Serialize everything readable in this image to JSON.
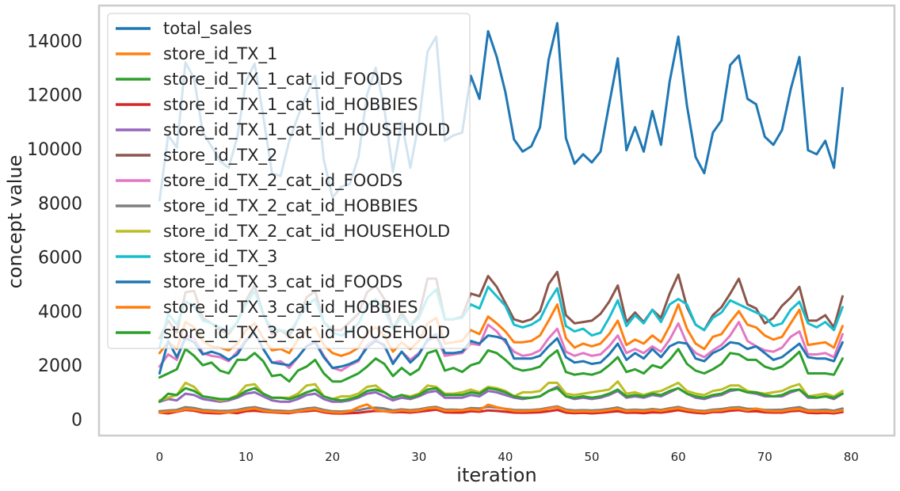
{
  "chart_data": {
    "type": "line",
    "title": "",
    "xlabel": "iteration",
    "ylabel": "concept value",
    "xlim": [
      -7,
      85
    ],
    "ylim": [
      -600,
      15300
    ],
    "xticks": [
      0,
      10,
      20,
      30,
      40,
      50,
      60,
      70,
      80
    ],
    "yticks": [
      0,
      2000,
      4000,
      6000,
      8000,
      10000,
      12000,
      14000
    ],
    "grid": false,
    "legend_position": "top-left",
    "x": [
      0,
      1,
      2,
      3,
      4,
      5,
      6,
      7,
      8,
      9,
      10,
      11,
      12,
      13,
      14,
      15,
      16,
      17,
      18,
      19,
      20,
      21,
      22,
      23,
      24,
      25,
      26,
      27,
      28,
      29,
      30,
      31,
      32,
      33,
      34,
      35,
      36,
      37,
      38,
      39,
      40,
      41,
      42,
      43,
      44,
      45,
      46,
      47,
      48,
      49,
      50,
      51,
      52,
      53,
      54,
      55,
      56,
      57,
      58,
      59,
      60,
      61,
      62,
      63,
      64,
      65,
      66,
      67,
      68,
      69,
      70,
      71,
      72,
      73,
      74,
      75,
      76,
      77,
      78,
      79
    ],
    "series": [
      {
        "name": "total_sales",
        "color": "#1f77b4",
        "values": [
          8100,
          10500,
          10050,
          13200,
          12600,
          10600,
          10100,
          9550,
          9300,
          10450,
          12500,
          13150,
          11200,
          9100,
          9000,
          10300,
          11200,
          12000,
          12700,
          9600,
          8200,
          8600,
          8700,
          9700,
          12000,
          13000,
          11500,
          9150,
          11000,
          9300,
          11000,
          13600,
          14150,
          10300,
          10500,
          10600,
          12700,
          11850,
          14350,
          13400,
          12100,
          10350,
          9900,
          10100,
          10800,
          13300,
          14650,
          10400,
          9450,
          9800,
          9500,
          9900,
          11650,
          13350,
          9950,
          10800,
          9900,
          11400,
          10150,
          12500,
          14150,
          11600,
          9700,
          9100,
          10600,
          11050,
          13100,
          13450,
          11850,
          11650,
          10450,
          10150,
          10700,
          12200,
          13400,
          9950,
          9800,
          10300,
          9300,
          12250
        ]
      },
      {
        "name": "store_id_TX_1",
        "color": "#ff7f0e",
        "values": [
          2450,
          2850,
          2600,
          3600,
          3400,
          2900,
          2700,
          2650,
          2550,
          2800,
          3300,
          3550,
          3000,
          2550,
          2600,
          2450,
          2950,
          3250,
          3400,
          2750,
          2450,
          2350,
          2450,
          2650,
          3200,
          3400,
          3100,
          2500,
          2850,
          2600,
          2900,
          3550,
          3750,
          2800,
          2850,
          2900,
          3300,
          3150,
          3800,
          3550,
          3250,
          2850,
          2850,
          2900,
          3100,
          3650,
          4250,
          3000,
          2650,
          2800,
          2700,
          2800,
          3150,
          3650,
          2750,
          2950,
          2800,
          3100,
          2850,
          3450,
          4250,
          3350,
          2800,
          2600,
          3050,
          3150,
          3600,
          4000,
          3500,
          3400,
          3100,
          2950,
          3050,
          3550,
          4050,
          2750,
          2800,
          2850,
          2650,
          3450
        ]
      },
      {
        "name": "store_id_TX_1_cat_id_FOODS",
        "color": "#2ca02c",
        "values": [
          1550,
          1700,
          1850,
          2600,
          2350,
          2000,
          2100,
          1800,
          1700,
          2200,
          2200,
          2450,
          2150,
          1600,
          1650,
          1400,
          1800,
          1950,
          2200,
          1700,
          1400,
          1400,
          1550,
          1700,
          1950,
          2250,
          2050,
          1600,
          1900,
          1650,
          1850,
          2450,
          2550,
          1800,
          1900,
          1750,
          2000,
          2100,
          2550,
          2450,
          2200,
          1900,
          1800,
          1850,
          1950,
          2300,
          2550,
          1750,
          1650,
          1700,
          1650,
          1750,
          2000,
          2300,
          1750,
          1850,
          1700,
          2000,
          1900,
          2200,
          2600,
          2050,
          1800,
          1700,
          1850,
          2050,
          2450,
          2400,
          2200,
          2200,
          1950,
          1850,
          1950,
          2200,
          2500,
          1700,
          1700,
          1700,
          1650,
          2250
        ]
      },
      {
        "name": "store_id_TX_1_cat_id_HOBBIES",
        "color": "#d62728",
        "values": [
          250,
          220,
          280,
          350,
          320,
          250,
          230,
          220,
          260,
          230,
          300,
          320,
          280,
          260,
          240,
          230,
          280,
          300,
          330,
          260,
          220,
          210,
          230,
          240,
          280,
          310,
          300,
          260,
          270,
          250,
          280,
          320,
          360,
          260,
          250,
          250,
          300,
          280,
          330,
          310,
          280,
          250,
          240,
          250,
          260,
          300,
          350,
          250,
          230,
          240,
          220,
          240,
          270,
          300,
          240,
          250,
          230,
          260,
          250,
          290,
          340,
          280,
          240,
          220,
          270,
          270,
          320,
          340,
          290,
          300,
          260,
          250,
          250,
          300,
          320,
          240,
          230,
          240,
          220,
          270
        ]
      },
      {
        "name": "store_id_TX_1_cat_id_HOUSEHOLD",
        "color": "#9467bd",
        "values": [
          650,
          750,
          700,
          950,
          900,
          750,
          700,
          650,
          700,
          800,
          950,
          1000,
          850,
          700,
          650,
          650,
          750,
          900,
          950,
          750,
          650,
          650,
          700,
          800,
          950,
          1000,
          850,
          700,
          800,
          750,
          850,
          1000,
          1050,
          800,
          800,
          800,
          900,
          850,
          1050,
          1000,
          900,
          800,
          750,
          800,
          850,
          1050,
          1200,
          850,
          750,
          800,
          750,
          800,
          900,
          1050,
          800,
          850,
          800,
          900,
          850,
          1000,
          1150,
          950,
          800,
          750,
          850,
          900,
          1050,
          1100,
          1000,
          950,
          850,
          850,
          850,
          1000,
          1100,
          800,
          800,
          850,
          750,
          950
        ]
      },
      {
        "name": "store_id_TX_2",
        "color": "#8c564b",
        "values": [
          3000,
          3650,
          3200,
          4700,
          4750,
          3750,
          3550,
          3300,
          3150,
          3600,
          4400,
          4950,
          3900,
          3150,
          3300,
          3050,
          3700,
          4500,
          4750,
          3600,
          3300,
          3300,
          3600,
          3900,
          4700,
          4950,
          4450,
          3350,
          3950,
          3450,
          3850,
          5200,
          5200,
          3700,
          3700,
          3800,
          4650,
          4550,
          5300,
          4900,
          4300,
          3700,
          3600,
          3700,
          4000,
          5000,
          5450,
          3850,
          3550,
          3600,
          3650,
          3900,
          4350,
          4950,
          3600,
          3950,
          3600,
          4050,
          3750,
          4650,
          5350,
          4150,
          3500,
          3300,
          3850,
          4150,
          4650,
          5200,
          4250,
          4100,
          3550,
          3750,
          4200,
          4500,
          4900,
          3650,
          3650,
          3850,
          3400,
          4550
        ]
      },
      {
        "name": "store_id_TX_2_cat_id_FOODS",
        "color": "#e377c2",
        "values": [
          1950,
          2400,
          2200,
          3100,
          3000,
          2450,
          2350,
          2300,
          2150,
          2500,
          2950,
          3200,
          2600,
          2100,
          2150,
          1900,
          2300,
          2700,
          2900,
          2350,
          1900,
          1800,
          2000,
          2150,
          2750,
          2950,
          2700,
          2100,
          2500,
          2200,
          2450,
          2900,
          3050,
          2350,
          2400,
          2450,
          2800,
          2750,
          3500,
          3250,
          2850,
          2500,
          2350,
          2400,
          2550,
          3000,
          3350,
          2500,
          2350,
          2450,
          2350,
          2400,
          2700,
          3100,
          2450,
          2600,
          2450,
          2700,
          2500,
          2950,
          3550,
          2800,
          2450,
          2300,
          2550,
          2750,
          3100,
          3600,
          2900,
          2700,
          2550,
          2500,
          2650,
          3050,
          3250,
          2400,
          2400,
          2450,
          2300,
          3150
        ]
      },
      {
        "name": "store_id_TX_2_cat_id_HOBBIES",
        "color": "#7f7f7f",
        "values": [
          300,
          330,
          350,
          450,
          420,
          350,
          330,
          310,
          320,
          350,
          420,
          450,
          380,
          330,
          320,
          300,
          350,
          400,
          430,
          350,
          300,
          290,
          320,
          340,
          400,
          430,
          400,
          330,
          370,
          340,
          370,
          430,
          460,
          360,
          360,
          350,
          420,
          400,
          460,
          430,
          390,
          350,
          340,
          350,
          370,
          430,
          480,
          360,
          330,
          340,
          330,
          350,
          390,
          440,
          340,
          360,
          340,
          380,
          350,
          410,
          460,
          380,
          330,
          310,
          360,
          380,
          430,
          450,
          390,
          390,
          350,
          350,
          360,
          410,
          450,
          340,
          340,
          360,
          320,
          400
        ]
      },
      {
        "name": "store_id_TX_2_cat_id_HOUSEHOLD",
        "color": "#bcbd22",
        "values": [
          700,
          800,
          900,
          1350,
          1200,
          850,
          800,
          700,
          750,
          900,
          1250,
          1300,
          950,
          800,
          800,
          800,
          950,
          1250,
          1300,
          850,
          750,
          850,
          850,
          950,
          1200,
          1250,
          1000,
          800,
          900,
          850,
          950,
          1250,
          1200,
          950,
          950,
          1000,
          1100,
          1000,
          1200,
          1150,
          1050,
          850,
          1000,
          1000,
          1050,
          1350,
          1350,
          950,
          900,
          950,
          1000,
          1050,
          1100,
          1400,
          950,
          1000,
          900,
          1000,
          1050,
          1200,
          1350,
          1050,
          950,
          900,
          1050,
          1100,
          1250,
          1250,
          1050,
          1000,
          950,
          1000,
          1050,
          1200,
          1300,
          850,
          900,
          950,
          850,
          1050
        ]
      },
      {
        "name": "store_id_TX_3",
        "color": "#17becf",
        "values": [
          2650,
          3900,
          3500,
          4350,
          4200,
          3650,
          3550,
          3400,
          3250,
          3600,
          4250,
          4750,
          3850,
          3350,
          3300,
          3200,
          3700,
          4200,
          4450,
          3600,
          3200,
          3100,
          3250,
          3550,
          4200,
          4450,
          4050,
          3350,
          3800,
          3450,
          3750,
          4500,
          4800,
          3700,
          3700,
          3750,
          4250,
          4100,
          4900,
          4550,
          4200,
          3500,
          3400,
          3500,
          3700,
          4350,
          4850,
          3450,
          3250,
          3350,
          3100,
          3200,
          3750,
          4400,
          3450,
          3850,
          3550,
          4050,
          3600,
          4250,
          4450,
          4250,
          3500,
          3300,
          3750,
          3950,
          4400,
          4250,
          4100,
          3950,
          3800,
          3450,
          3550,
          4050,
          4350,
          3550,
          3400,
          3600,
          3300,
          4150
        ]
      },
      {
        "name": "store_id_TX_3_cat_id_FOODS",
        "color": "#1f77b4",
        "values": [
          1700,
          2900,
          2300,
          3000,
          2850,
          2400,
          2500,
          2400,
          2200,
          2400,
          2900,
          3200,
          2600,
          2100,
          2050,
          2000,
          2300,
          2700,
          2850,
          2300,
          1900,
          1950,
          2050,
          2200,
          2650,
          2900,
          2750,
          2050,
          2500,
          2100,
          2400,
          2950,
          3150,
          2450,
          2450,
          2500,
          2900,
          2800,
          3100,
          3050,
          2950,
          2250,
          2250,
          2250,
          2350,
          2700,
          3000,
          2300,
          2100,
          2150,
          2050,
          2100,
          2400,
          2800,
          2200,
          2450,
          2250,
          2600,
          2300,
          2700,
          2850,
          2800,
          2250,
          2150,
          2450,
          2600,
          2850,
          2800,
          2600,
          2700,
          2450,
          2200,
          2300,
          2550,
          2800,
          2300,
          2250,
          2250,
          2150,
          2850
        ]
      },
      {
        "name": "store_id_TX_3_cat_id_HOBBIES",
        "color": "#ff7f0e",
        "values": [
          250,
          280,
          300,
          380,
          360,
          300,
          280,
          260,
          270,
          300,
          360,
          400,
          320,
          280,
          270,
          260,
          300,
          350,
          380,
          300,
          260,
          250,
          300,
          450,
          550,
          350,
          300,
          280,
          330,
          300,
          330,
          400,
          420,
          320,
          320,
          330,
          370,
          340,
          540,
          450,
          380,
          310,
          300,
          320,
          330,
          400,
          450,
          320,
          280,
          300,
          280,
          300,
          340,
          390,
          300,
          320,
          300,
          340,
          310,
          370,
          410,
          350,
          300,
          270,
          320,
          330,
          390,
          400,
          330,
          400,
          320,
          300,
          300,
          360,
          380,
          300,
          290,
          300,
          270,
          330
        ]
      },
      {
        "name": "store_id_TX_3_cat_id_HOUSEHOLD",
        "color": "#2ca02c",
        "values": [
          650,
          950,
          900,
          1150,
          1050,
          850,
          800,
          750,
          750,
          850,
          1050,
          1150,
          950,
          800,
          800,
          750,
          850,
          1000,
          1100,
          850,
          750,
          700,
          750,
          850,
          1050,
          1100,
          1000,
          800,
          900,
          800,
          900,
          1100,
          1150,
          900,
          900,
          900,
          1000,
          950,
          1150,
          1100,
          1000,
          850,
          800,
          800,
          850,
          1050,
          1150,
          850,
          800,
          850,
          800,
          850,
          950,
          1100,
          850,
          900,
          850,
          950,
          900,
          1050,
          1150,
          950,
          850,
          800,
          900,
          950,
          1100,
          1100,
          1000,
          1000,
          900,
          850,
          900,
          1050,
          1100,
          850,
          800,
          850,
          800,
          950
        ]
      }
    ]
  }
}
